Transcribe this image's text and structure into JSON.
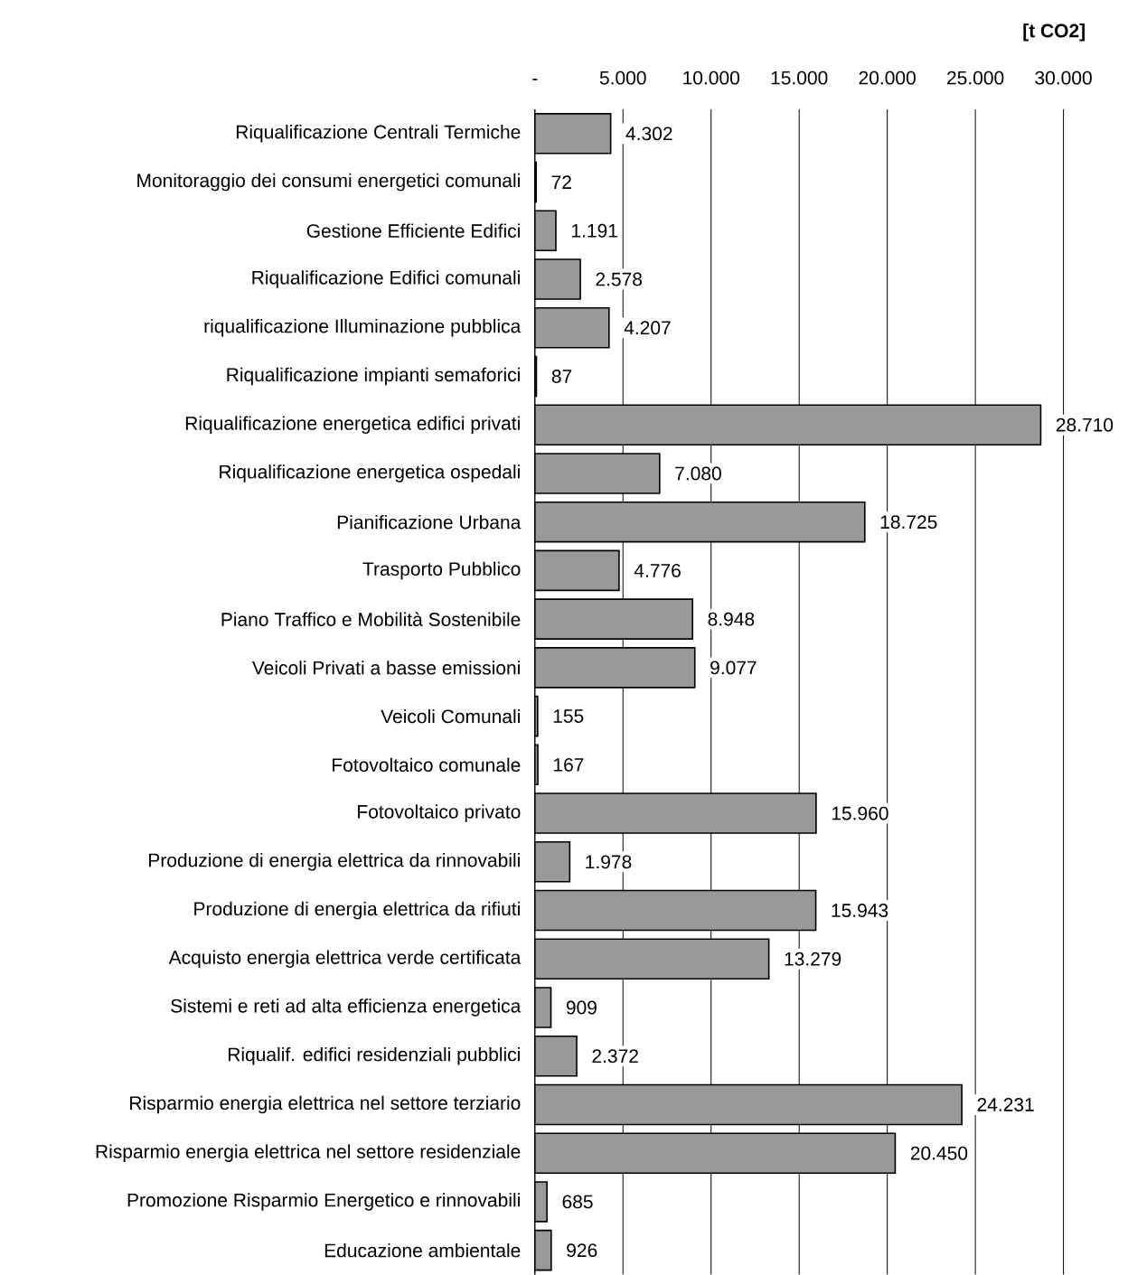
{
  "chart_data": {
    "type": "bar",
    "orientation": "horizontal",
    "xlabel": "**[t CO2]**",
    "categories": [
      "Riqualificazione Centrali Termiche",
      "Monitoraggio dei consumi energetici comunali",
      "Gestione Efficiente Edifici",
      "Riqualificazione Edifici comunali",
      "riqualificazione  Illuminazione pubblica",
      "Riqualificazione impianti semaforici",
      "Riqualificazione energetica edifici privati",
      "Riqualificazione energetica ospedali",
      "Pianificazione Urbana",
      "Trasporto Pubblico",
      "Piano Traffico e Mobilità Sostenibile",
      "Veicoli Privati a basse emissioni",
      "Veicoli Comunali",
      "Fotovoltaico comunale",
      "Fotovoltaico privato",
      "Produzione di energia elettrica da rinnovabili",
      "Produzione di energia elettrica da rifiuti",
      "Acquisto energia elettrica verde certificata",
      "Sistemi e reti ad alta efficienza energetica",
      "Riqualif. edifici residenziali pubblici",
      "Risparmio energia elettrica nel settore terziario",
      "Risparmio energia elettrica nel settore residenziale",
      "Promozione Risparmio Energetico e rinnovabili",
      "Educazione ambientale"
    ],
    "values": [
      4302,
      72,
      1191,
      2578,
      4207,
      87,
      28710,
      7080,
      18725,
      4776,
      8948,
      9077,
      155,
      167,
      15960,
      1978,
      15943,
      13279,
      909,
      2372,
      24231,
      20450,
      685,
      926
    ],
    "value_labels": [
      "4.302",
      "72",
      "1.191",
      "2.578",
      "4.207",
      "87",
      "28.710",
      "7.080",
      "18.725",
      "4.776",
      "8.948",
      "9.077",
      "155",
      "167",
      "15.960",
      "1.978",
      "15.943",
      "13.279",
      "909",
      "2.372",
      "24.231",
      "20.450",
      "685",
      "926"
    ],
    "color": "#999999",
    "xlim": [
      0,
      30000
    ],
    "xticks": [
      {
        "value": 0,
        "label": "-"
      },
      {
        "value": 5000,
        "label": "5.000"
      },
      {
        "value": 10000,
        "label": "10.000"
      },
      {
        "value": 15000,
        "label": "15.000"
      },
      {
        "value": 20000,
        "label": "20.000"
      },
      {
        "value": 25000,
        "label": "25.000"
      },
      {
        "value": 30000,
        "label": "30.000"
      }
    ],
    "grid": "x"
  }
}
